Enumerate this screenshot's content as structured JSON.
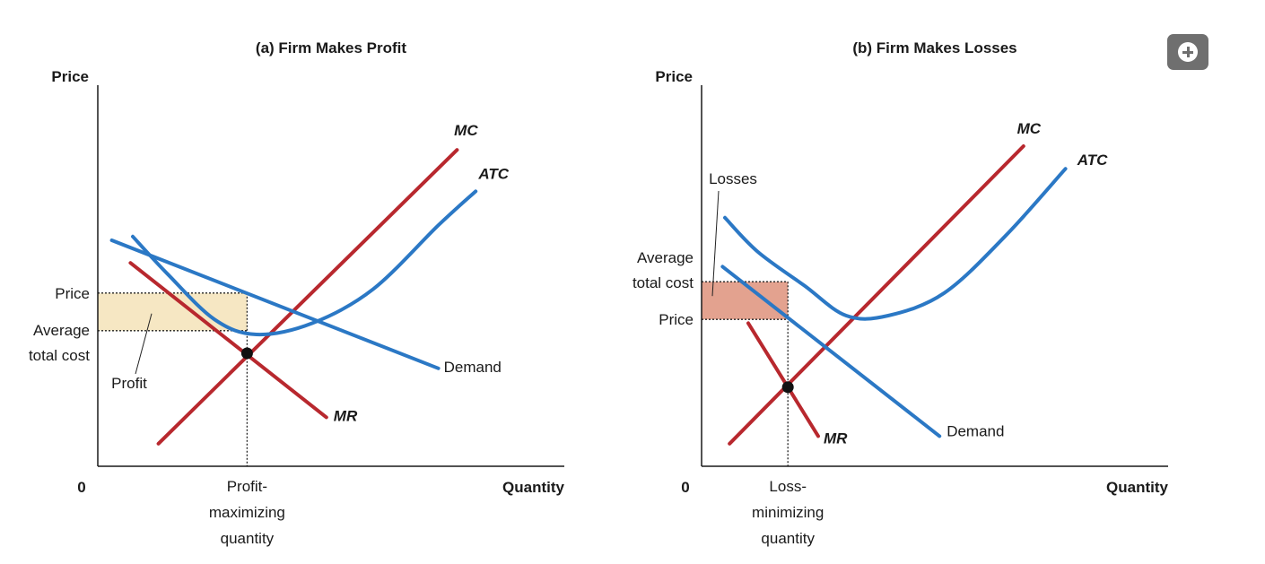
{
  "ui": {
    "expand_icon": "plus-icon"
  },
  "colors": {
    "red": "#b8282e",
    "blue": "#2b78c5",
    "profit_fill": "#f6e7c3",
    "loss_fill": "#e3a28f",
    "axis": "#1a1a1a"
  },
  "chart_data": [
    {
      "type": "line",
      "title": "(a) Firm Makes Profit",
      "xlabel": "Quantity",
      "ylabel": "Price",
      "origin_label": "0",
      "xlim": [
        0,
        10
      ],
      "ylim": [
        0,
        10
      ],
      "y_tick_labels": [
        {
          "text": "Price",
          "y": 4.6
        },
        {
          "text": "Average\ntotal cost",
          "y": 3.6
        }
      ],
      "x_tick_labels": [
        {
          "text": "Profit-\nmaximizing\nquantity",
          "x": 3.2
        }
      ],
      "series": [
        {
          "name": "MC",
          "x": [
            1.3,
            7.7
          ],
          "y": [
            0.6,
            8.4
          ]
        },
        {
          "name": "ATC",
          "x": [
            0.75,
            1.5,
            2.5,
            3.4,
            4.6,
            5.9,
            7.3,
            8.1
          ],
          "y": [
            6.1,
            5.1,
            3.9,
            3.5,
            3.8,
            4.7,
            6.4,
            7.3
          ]
        },
        {
          "name": "Demand",
          "x": [
            0.3,
            7.3
          ],
          "y": [
            6.0,
            2.6
          ]
        },
        {
          "name": "MR",
          "x": [
            0.7,
            4.9
          ],
          "y": [
            5.4,
            1.3
          ]
        }
      ],
      "shaded_region": {
        "label": "Profit",
        "x": [
          0,
          3.2
        ],
        "y": [
          3.6,
          4.6
        ]
      },
      "marker": {
        "x": 3.2,
        "y": 3.0
      }
    },
    {
      "type": "line",
      "title": "(b) Firm Makes Losses",
      "xlabel": "Quantity",
      "ylabel": "Price",
      "origin_label": "0",
      "xlim": [
        0,
        10
      ],
      "ylim": [
        0,
        10
      ],
      "y_tick_labels": [
        {
          "text": "Average\ntotal cost",
          "y": 4.9
        },
        {
          "text": "Price",
          "y": 3.9
        }
      ],
      "x_tick_labels": [
        {
          "text": "Loss-\nminimizing\nquantity",
          "x": 1.85
        }
      ],
      "series": [
        {
          "name": "MC",
          "x": [
            0.6,
            6.9
          ],
          "y": [
            0.6,
            8.5
          ]
        },
        {
          "name": "ATC",
          "x": [
            0.5,
            1.2,
            2.2,
            3.1,
            4.0,
            5.2,
            6.5,
            7.8
          ],
          "y": [
            6.6,
            5.7,
            4.8,
            4.0,
            4.0,
            4.6,
            6.1,
            7.9
          ]
        },
        {
          "name": "Demand",
          "x": [
            0.45,
            5.1
          ],
          "y": [
            5.3,
            0.8
          ]
        },
        {
          "name": "MR",
          "x": [
            1.0,
            2.5
          ],
          "y": [
            3.8,
            0.8
          ]
        }
      ],
      "shaded_region": {
        "label": "Losses",
        "x": [
          0,
          1.85
        ],
        "y": [
          3.9,
          4.9
        ]
      },
      "marker": {
        "x": 1.85,
        "y": 2.1
      }
    }
  ]
}
